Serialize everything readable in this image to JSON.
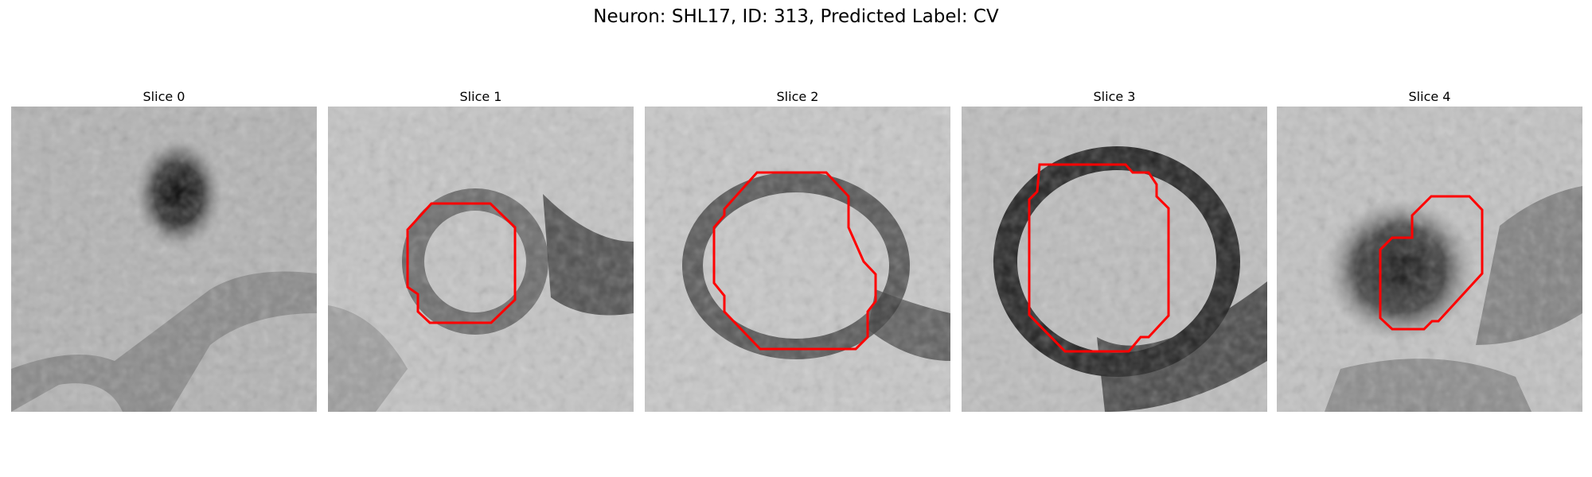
{
  "title": "Neuron: SHL17, ID: 313, Predicted Label: CV",
  "panels": [
    {
      "label": "Slice 0"
    },
    {
      "label": "Slice 1"
    },
    {
      "label": "Slice 2"
    },
    {
      "label": "Slice 3"
    },
    {
      "label": "Slice 4"
    }
  ],
  "colors": {
    "contour": "#ff0000",
    "background": "#ffffff"
  }
}
